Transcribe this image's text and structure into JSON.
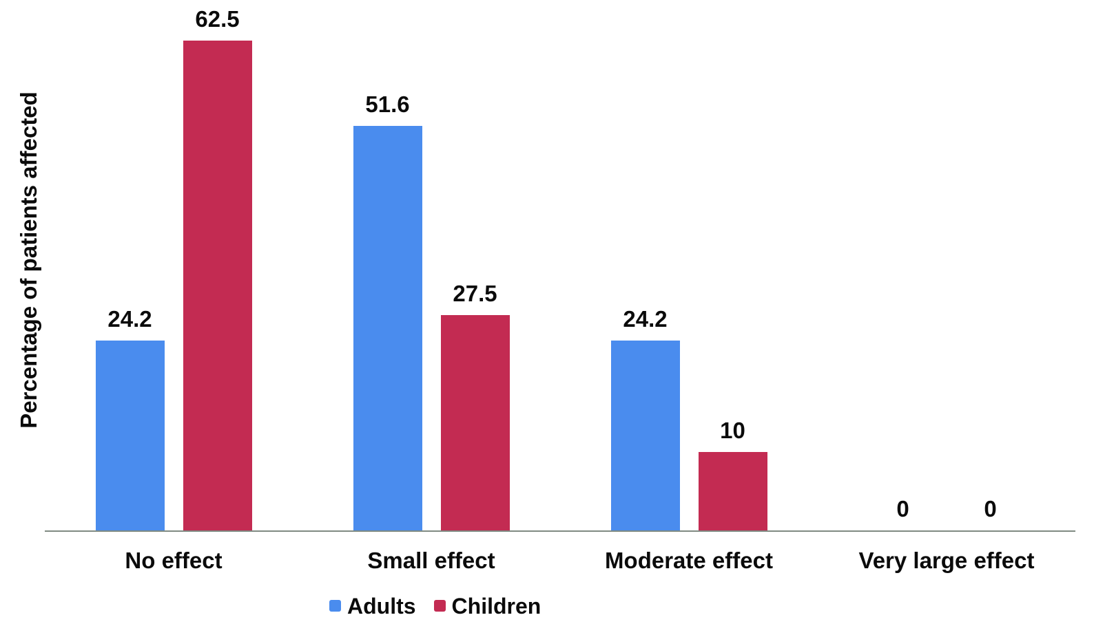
{
  "chart_data": {
    "type": "bar",
    "title": "",
    "categories": [
      "No effect",
      "Small effect",
      "Moderate effect",
      "Very large effect"
    ],
    "series": [
      {
        "name": "Adults",
        "color": "#4a8cee",
        "values": [
          24.2,
          51.6,
          24.2,
          0
        ]
      },
      {
        "name": "Children",
        "color": "#c32b52",
        "values": [
          62.5,
          27.5,
          10,
          0
        ]
      }
    ],
    "value_labels": {
      "Adults": [
        "24.2",
        "51.6",
        "24.2",
        "0"
      ],
      "Children": [
        "62.5",
        "27.5",
        "10",
        "0"
      ]
    },
    "xlabel": "",
    "ylabel": "Percentage of patients affected",
    "ylim": [
      0,
      65
    ],
    "grid": false,
    "axis_line_color": "#7f8a82",
    "text_color": "#0b0b0b",
    "legend_position": "bottom"
  }
}
